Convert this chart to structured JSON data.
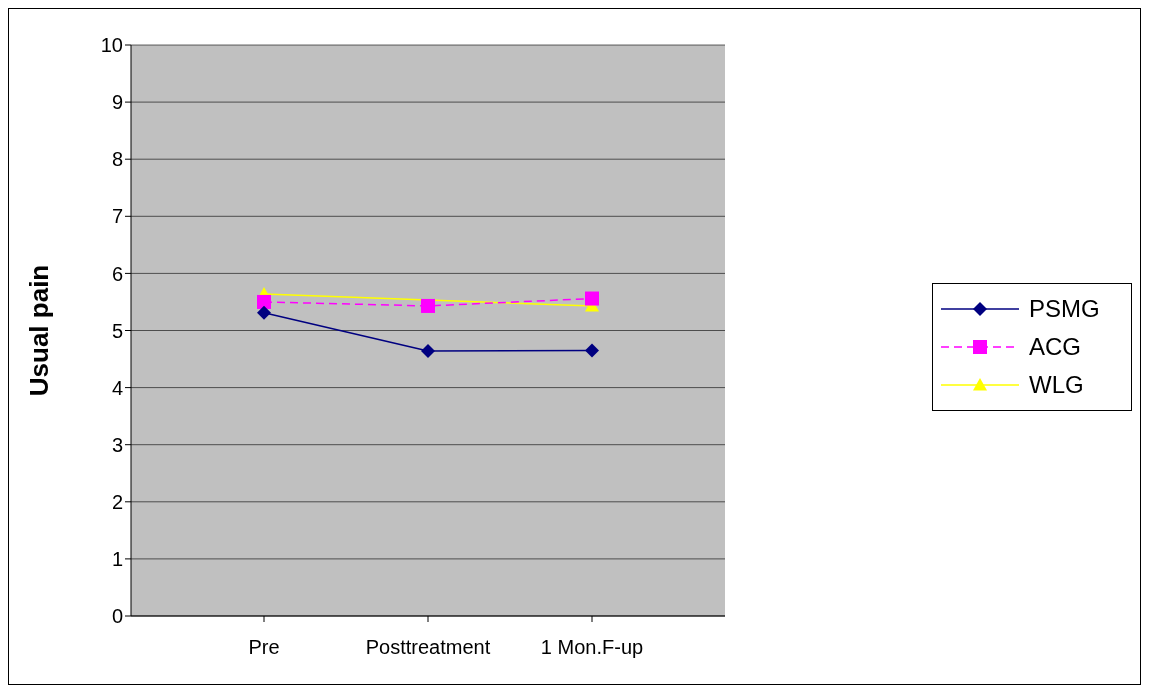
{
  "chart_data": {
    "type": "line",
    "ylabel": "Usual pain",
    "categories": [
      "Pre",
      "Posttreatment",
      "1 Mon.F-up"
    ],
    "ylim": [
      0,
      10
    ],
    "yticks": [
      0,
      1,
      2,
      3,
      4,
      5,
      6,
      7,
      8,
      9,
      10
    ],
    "grid": "y",
    "legend": "right",
    "series": [
      {
        "name": "PSMG",
        "color": "#000080",
        "values": [
          5.31,
          4.64,
          4.65
        ],
        "marker": "diamond",
        "line_style": "solid"
      },
      {
        "name": "ACG",
        "color": "#ff00ff",
        "values": [
          5.5,
          5.43,
          5.56
        ],
        "marker": "square",
        "line_style": "dashed"
      },
      {
        "name": "WLG",
        "color": "#ffff00",
        "values": [
          5.64,
          null,
          5.43
        ],
        "marker": "triangle",
        "line_style": "solid"
      }
    ]
  }
}
